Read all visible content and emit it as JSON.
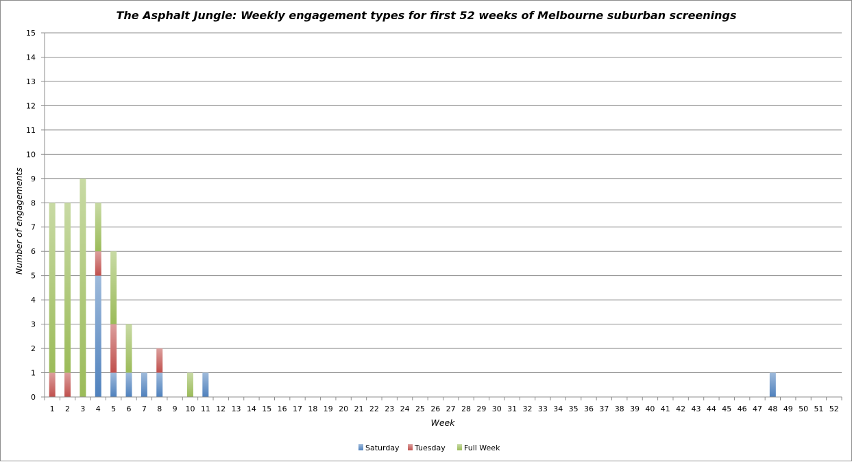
{
  "chart_data": {
    "type": "bar",
    "stacked": true,
    "title": "The Asphalt Jungle: Weekly engagement types for first 52 weeks of Melbourne suburban screenings",
    "xlabel": "Week",
    "ylabel": "Number of engagements",
    "ylim": [
      0,
      15
    ],
    "grid": true,
    "legend_position": "bottom",
    "categories": [
      "1",
      "2",
      "3",
      "4",
      "5",
      "6",
      "7",
      "8",
      "9",
      "10",
      "11",
      "12",
      "13",
      "14",
      "15",
      "16",
      "17",
      "18",
      "19",
      "20",
      "21",
      "22",
      "23",
      "24",
      "25",
      "26",
      "27",
      "28",
      "29",
      "30",
      "31",
      "32",
      "33",
      "34",
      "35",
      "36",
      "37",
      "38",
      "39",
      "40",
      "41",
      "42",
      "43",
      "44",
      "45",
      "46",
      "47",
      "48",
      "49",
      "50",
      "51",
      "52"
    ],
    "y_ticks": [
      "0",
      "1",
      "2",
      "3",
      "4",
      "5",
      "6",
      "7",
      "8",
      "9",
      "10",
      "11",
      "12",
      "13",
      "14",
      "15"
    ],
    "series": [
      {
        "name": "Saturday",
        "color": "#4f81bd",
        "values": [
          0,
          0,
          0,
          5,
          1,
          1,
          1,
          1,
          0,
          0,
          1,
          0,
          0,
          0,
          0,
          0,
          0,
          0,
          0,
          0,
          0,
          0,
          0,
          0,
          0,
          0,
          0,
          0,
          0,
          0,
          0,
          0,
          0,
          0,
          0,
          0,
          0,
          0,
          0,
          0,
          0,
          0,
          0,
          0,
          0,
          0,
          0,
          1,
          0,
          0,
          0,
          0
        ]
      },
      {
        "name": "Tuesday",
        "color": "#c0504d",
        "values": [
          1,
          1,
          0,
          1,
          2,
          0,
          0,
          1,
          0,
          0,
          0,
          0,
          0,
          0,
          0,
          0,
          0,
          0,
          0,
          0,
          0,
          0,
          0,
          0,
          0,
          0,
          0,
          0,
          0,
          0,
          0,
          0,
          0,
          0,
          0,
          0,
          0,
          0,
          0,
          0,
          0,
          0,
          0,
          0,
          0,
          0,
          0,
          0,
          0,
          0,
          0,
          0
        ]
      },
      {
        "name": "Full Week",
        "color": "#9bbb59",
        "values": [
          7,
          7,
          9,
          2,
          3,
          2,
          0,
          0,
          0,
          1,
          0,
          0,
          0,
          0,
          0,
          0,
          0,
          0,
          0,
          0,
          0,
          0,
          0,
          0,
          0,
          0,
          0,
          0,
          0,
          0,
          0,
          0,
          0,
          0,
          0,
          0,
          0,
          0,
          0,
          0,
          0,
          0,
          0,
          0,
          0,
          0,
          0,
          0,
          0,
          0,
          0,
          0
        ]
      }
    ]
  }
}
